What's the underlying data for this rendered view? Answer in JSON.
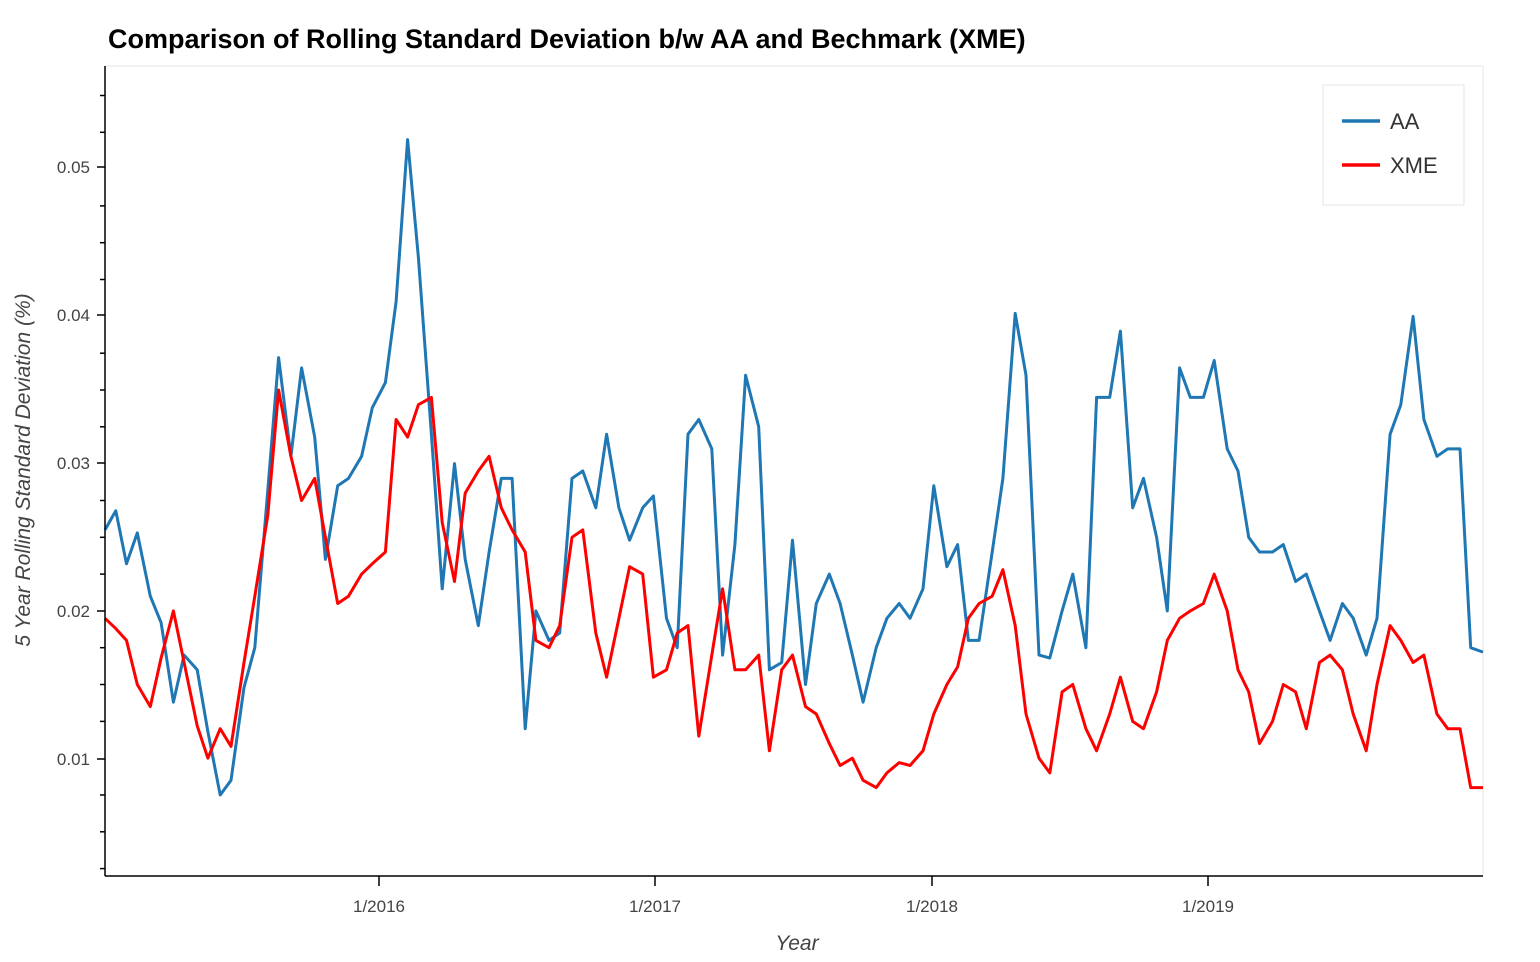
{
  "chart_data": {
    "type": "line",
    "title": "Comparison of Rolling Standard Deviation b/w AA and Bechmark (XME)",
    "xlabel": "Year",
    "ylabel": "5 Year Rolling Standard Deviation (%)",
    "x_tick_labels": [
      "1/2016",
      "1/2017",
      "1/2018",
      "1/2019"
    ],
    "y_tick_labels": [
      "0.01",
      "0.02",
      "0.03",
      "0.04",
      "0.05"
    ],
    "xlim": [
      "2015-02-01",
      "2019-12-31"
    ],
    "ylim": [
      0.002,
      0.057
    ],
    "grid": false,
    "legend_position": "top-right",
    "x": [
      "2015-02-01",
      "2015-02-15",
      "2015-03-01",
      "2015-03-15",
      "2015-04-01",
      "2015-04-15",
      "2015-05-01",
      "2015-05-15",
      "2015-06-01",
      "2015-06-15",
      "2015-07-01",
      "2015-07-15",
      "2015-08-01",
      "2015-08-15",
      "2015-09-01",
      "2015-09-15",
      "2015-10-01",
      "2015-10-15",
      "2015-11-01",
      "2015-11-15",
      "2015-12-01",
      "2015-12-15",
      "2016-01-01",
      "2016-01-15",
      "2016-02-01",
      "2016-02-15",
      "2016-03-01",
      "2016-03-15",
      "2016-04-01",
      "2016-04-15",
      "2016-05-01",
      "2016-05-15",
      "2016-06-01",
      "2016-06-15",
      "2016-07-01",
      "2016-07-15",
      "2016-08-01",
      "2016-08-15",
      "2016-09-01",
      "2016-09-15",
      "2016-10-01",
      "2016-10-15",
      "2016-11-01",
      "2016-11-15",
      "2016-12-01",
      "2016-12-15",
      "2017-01-01",
      "2017-01-15",
      "2017-02-01",
      "2017-02-15",
      "2017-03-01",
      "2017-03-15",
      "2017-04-01",
      "2017-04-15",
      "2017-05-01",
      "2017-05-15",
      "2017-06-01",
      "2017-06-15",
      "2017-07-01",
      "2017-07-15",
      "2017-08-01",
      "2017-08-15",
      "2017-09-01",
      "2017-09-15",
      "2017-10-01",
      "2017-10-15",
      "2017-11-01",
      "2017-11-15",
      "2017-12-01",
      "2017-12-15",
      "2018-01-01",
      "2018-01-15",
      "2018-02-01",
      "2018-02-15",
      "2018-03-01",
      "2018-03-15",
      "2018-04-01",
      "2018-04-15",
      "2018-05-01",
      "2018-05-15",
      "2018-06-01",
      "2018-06-15",
      "2018-07-01",
      "2018-07-15",
      "2018-08-01",
      "2018-08-15",
      "2018-09-01",
      "2018-09-15",
      "2018-10-01",
      "2018-10-15",
      "2018-11-01",
      "2018-11-15",
      "2018-12-01",
      "2018-12-15",
      "2019-01-01",
      "2019-01-15",
      "2019-02-01",
      "2019-02-15",
      "2019-03-01",
      "2019-03-15",
      "2019-04-01",
      "2019-04-15",
      "2019-05-01",
      "2019-05-15",
      "2019-06-01",
      "2019-06-15",
      "2019-07-01",
      "2019-07-15",
      "2019-08-01",
      "2019-08-15",
      "2019-09-01",
      "2019-09-15",
      "2019-10-01",
      "2019-10-15",
      "2019-11-01",
      "2019-11-15",
      "2019-12-01",
      "2019-12-15",
      "2019-12-31"
    ],
    "series": [
      {
        "name": "AA",
        "color": "#1f77b4",
        "values": [
          0.0255,
          0.0268,
          0.0232,
          0.0253,
          0.021,
          0.0192,
          0.0138,
          0.017,
          0.016,
          0.0118,
          0.0075,
          0.0085,
          0.0148,
          0.0175,
          0.0282,
          0.0372,
          0.0305,
          0.0365,
          0.0318,
          0.0235,
          0.0285,
          0.029,
          0.0305,
          0.0338,
          0.0355,
          0.041,
          0.052,
          0.044,
          0.032,
          0.0215,
          0.03,
          0.0235,
          0.019,
          0.024,
          0.029,
          0.029,
          0.012,
          0.02,
          0.018,
          0.0185,
          0.029,
          0.0295,
          0.027,
          0.032,
          0.027,
          0.0248,
          0.027,
          0.0278,
          0.0195,
          0.0175,
          0.032,
          0.033,
          0.031,
          0.017,
          0.0245,
          0.036,
          0.0325,
          0.016,
          0.0165,
          0.0248,
          0.015,
          0.0205,
          0.0225,
          0.0205,
          0.017,
          0.0138,
          0.0175,
          0.0195,
          0.0205,
          0.0195,
          0.0215,
          0.0285,
          0.023,
          0.0245,
          0.018,
          0.018,
          0.024,
          0.029,
          0.0402,
          0.036,
          0.017,
          0.0168,
          0.02,
          0.0225,
          0.0175,
          0.0345,
          0.0345,
          0.039,
          0.027,
          0.029,
          0.025,
          0.02,
          0.0365,
          0.0345,
          0.0345,
          0.037,
          0.031,
          0.0295,
          0.025,
          0.024,
          0.024,
          0.0245,
          0.022,
          0.0225,
          0.02,
          0.018,
          0.0205,
          0.0195,
          0.017,
          0.0195,
          0.032,
          0.034,
          0.04,
          0.033,
          0.0305,
          0.031,
          0.031,
          0.0175,
          0.0172
        ]
      },
      {
        "name": "XME",
        "color": "#ff0000",
        "values": [
          0.0195,
          0.0188,
          0.018,
          0.015,
          0.0135,
          0.0168,
          0.02,
          0.0165,
          0.0122,
          0.01,
          0.012,
          0.0108,
          0.0165,
          0.021,
          0.0265,
          0.035,
          0.0305,
          0.0275,
          0.029,
          0.025,
          0.0205,
          0.021,
          0.0225,
          0.0232,
          0.024,
          0.033,
          0.0318,
          0.034,
          0.0345,
          0.026,
          0.022,
          0.028,
          0.0295,
          0.0305,
          0.027,
          0.0255,
          0.024,
          0.018,
          0.0175,
          0.019,
          0.025,
          0.0255,
          0.0185,
          0.0155,
          0.0195,
          0.023,
          0.0225,
          0.0155,
          0.016,
          0.0185,
          0.019,
          0.0115,
          0.017,
          0.0215,
          0.016,
          0.016,
          0.017,
          0.0105,
          0.016,
          0.017,
          0.0135,
          0.013,
          0.011,
          0.0095,
          0.01,
          0.0085,
          0.008,
          0.009,
          0.0097,
          0.0095,
          0.0105,
          0.013,
          0.015,
          0.0162,
          0.0195,
          0.0205,
          0.021,
          0.0228,
          0.019,
          0.013,
          0.01,
          0.009,
          0.0145,
          0.015,
          0.012,
          0.0105,
          0.013,
          0.0155,
          0.0125,
          0.012,
          0.0145,
          0.018,
          0.0195,
          0.02,
          0.0205,
          0.0225,
          0.02,
          0.016,
          0.0145,
          0.011,
          0.0125,
          0.015,
          0.0145,
          0.012,
          0.0165,
          0.017,
          0.016,
          0.013,
          0.0105,
          0.015,
          0.019,
          0.018,
          0.0165,
          0.017,
          0.013,
          0.012,
          0.012,
          0.008,
          0.008
        ]
      }
    ]
  }
}
